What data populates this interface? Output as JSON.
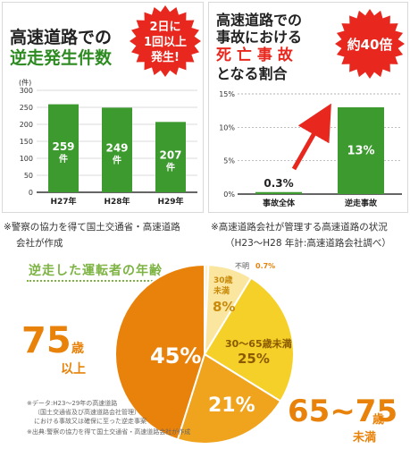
{
  "chart_data": [
    {
      "type": "bar",
      "title_lines": [
        "高速道路での",
        "逆走発生件数"
      ],
      "badge_lines": [
        "2日に",
        "1回以上",
        "発生!"
      ],
      "ylabel": "(件)",
      "ylim": [
        0,
        300
      ],
      "yticks": [
        "300",
        "250",
        "200",
        "150",
        "100",
        "50",
        "0"
      ],
      "categories": [
        "H27年",
        "H28年",
        "H29年"
      ],
      "values": [
        259,
        249,
        207
      ],
      "value_labels": [
        "259",
        "249",
        "207"
      ],
      "unit": "件",
      "bar_color": "#3c9a2e",
      "footnote_lines": [
        "※警察の協力を得て国土交通省・高速道路",
        "会社が作成"
      ]
    },
    {
      "type": "bar",
      "title_lines": [
        "高速道路での",
        "事故における",
        "死 亡 事 故",
        "となる割合"
      ],
      "badge": "約40倍",
      "ylim": [
        0,
        15
      ],
      "yticks": [
        "15%",
        "10%",
        "5%",
        "0%"
      ],
      "categories": [
        "事故全体",
        "逆走事故"
      ],
      "values": [
        0.3,
        13
      ],
      "value_labels": [
        "0.3%",
        "13%"
      ],
      "bar_color": "#3c9a2e",
      "accent_color": "#e8281e",
      "footnote_lines": [
        "※高速道路会社が管理する高速道路の状況",
        "（H23～H28 年計:高速道路会社調べ）"
      ]
    },
    {
      "type": "pie",
      "title": "逆走した運転者の年齢",
      "slices": [
        {
          "label": "不明",
          "value": 0.7,
          "value_label": "0.7%",
          "color": "#fff3c8"
        },
        {
          "label": "30歳未満",
          "value": 8,
          "value_label": "8%",
          "color": "#fbe6a0"
        },
        {
          "label": "30～65歳未満",
          "value": 25,
          "value_label": "25%",
          "color": "#f5d028"
        },
        {
          "label": "65~75歳未満",
          "value": 21,
          "value_label": "21%",
          "color": "#f0a41e"
        },
        {
          "label": "75歳以上",
          "value": 45,
          "value_label": "45%",
          "color": "#e8820a"
        }
      ],
      "callout_75": {
        "num": "75",
        "unit": "歳",
        "sub": "以上"
      },
      "callout_65": {
        "num": "65~75",
        "unit": "歳",
        "sub": "未満"
      },
      "notes": [
        "※データ:H23～29年の高速道路",
        "（国土交通省及び高速道路会社管理）",
        "における事故又は確保に至った逆走事案",
        "※出典:警察の協力を得て国土交通省・高速道路会社が作成"
      ]
    }
  ]
}
